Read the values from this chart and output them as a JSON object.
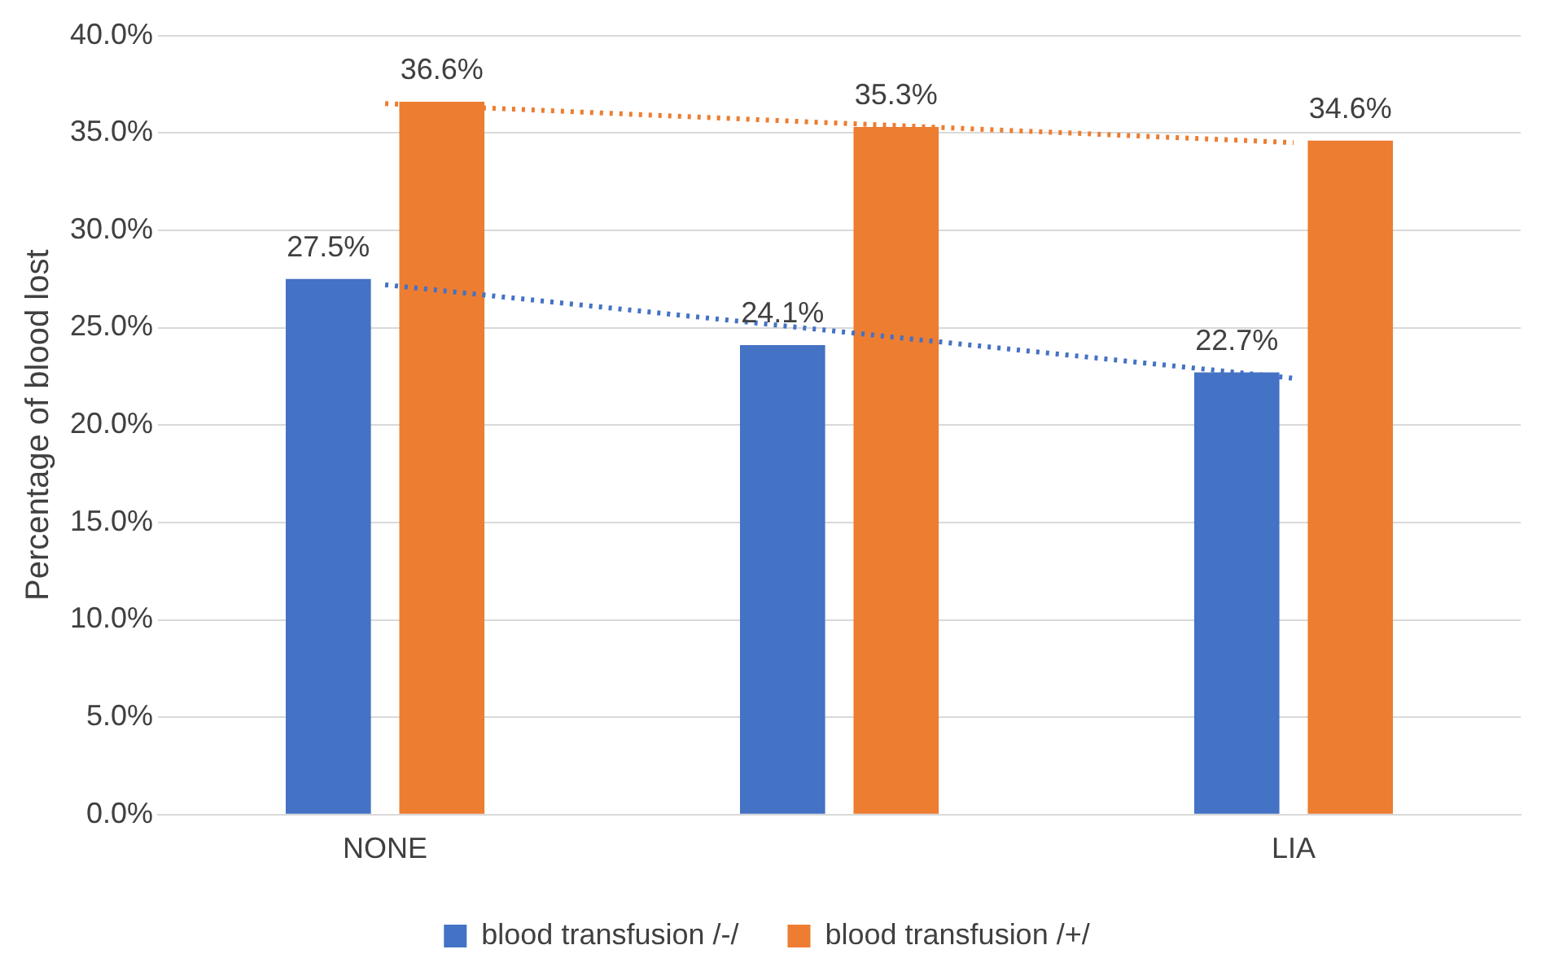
{
  "chart_data": {
    "type": "bar",
    "ylabel": "Percentage of blood lost",
    "categories": [
      "NONE",
      null,
      "LIA"
    ],
    "series": [
      {
        "name": "blood transfusion /-/",
        "color": "#4472c4",
        "values": [
          27.5,
          24.1,
          22.7
        ],
        "value_labels": [
          "27.5%",
          "24.1%",
          "22.7%"
        ]
      },
      {
        "name": "blood transfusion /+/",
        "color": "#ed7d31",
        "values": [
          36.6,
          35.3,
          34.6
        ],
        "value_labels": [
          "36.6%",
          "35.3%",
          "34.6%"
        ]
      },
      {
        "type": "line",
        "color": "#4472c4",
        "line_style": "dotted",
        "values": [
          27.2,
          24.8,
          22.4
        ]
      },
      {
        "type": "line",
        "color": "#ed7d31",
        "line_style": "dotted",
        "values": [
          36.5,
          35.5,
          34.5
        ]
      }
    ],
    "ylim": [
      0,
      40
    ],
    "yticks": [
      {
        "value": 0,
        "label": "0.0%"
      },
      {
        "value": 5,
        "label": "5.0%"
      },
      {
        "value": 10,
        "label": "10.0%"
      },
      {
        "value": 15,
        "label": "15.0%"
      },
      {
        "value": 20,
        "label": "20.0%"
      },
      {
        "value": 25,
        "label": "25.0%"
      },
      {
        "value": 30,
        "label": "30.0%"
      },
      {
        "value": 35,
        "label": "35.0%"
      },
      {
        "value": 40,
        "label": "40.0%"
      }
    ],
    "grid": "y",
    "legend": "bottom"
  }
}
